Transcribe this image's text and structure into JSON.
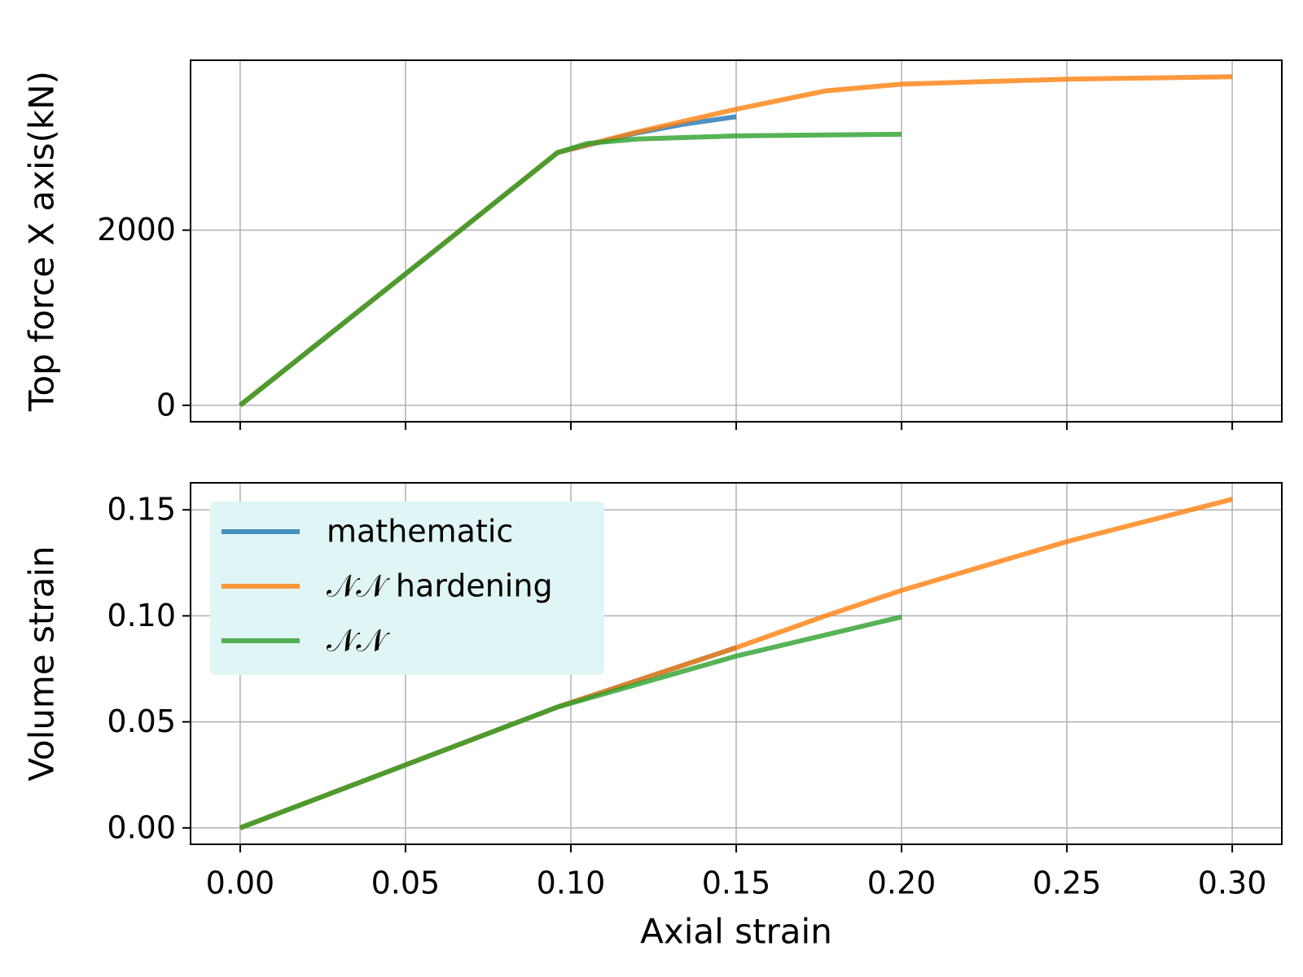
{
  "chart_data": [
    {
      "type": "line",
      "ylabel": "Top force X axis(kN)",
      "xlim": [
        -0.015,
        0.315
      ],
      "xticks": [
        0,
        0.05,
        0.1,
        0.15,
        0.2,
        0.25,
        0.3
      ],
      "xtick_labels": false,
      "ylim": [
        -188,
        3940
      ],
      "yticks": [
        0,
        2000
      ],
      "grid": true,
      "alpha": 0.8,
      "series": [
        {
          "color": "#1f77b4",
          "x": [
            0,
            0.03,
            0.06,
            0.096,
            0.12,
            0.135,
            0.15
          ],
          "values": [
            0,
            900,
            1800,
            2886,
            3110,
            3215,
            3295
          ]
        },
        {
          "color": "#ff7f0e",
          "x": [
            0,
            0.03,
            0.06,
            0.096,
            0.12,
            0.15,
            0.177,
            0.2,
            0.25,
            0.3
          ],
          "values": [
            0,
            900,
            1800,
            2886,
            3120,
            3381,
            3590,
            3667,
            3724,
            3752
          ]
        },
        {
          "color": "#2ca02c",
          "x": [
            0,
            0.03,
            0.06,
            0.096,
            0.105,
            0.12,
            0.15,
            0.2
          ],
          "values": [
            0,
            900,
            1800,
            2886,
            2990,
            3040,
            3076,
            3095
          ]
        }
      ]
    },
    {
      "type": "line",
      "ylabel": "Volume strain",
      "xlabel": "Axial strain",
      "xlim": [
        -0.015,
        0.315
      ],
      "xticks": [
        {
          "value": 0,
          "label": "0.00"
        },
        {
          "value": 0.05,
          "label": "0.05"
        },
        {
          "value": 0.1,
          "label": "0.10"
        },
        {
          "value": 0.15,
          "label": "0.15"
        },
        {
          "value": 0.2,
          "label": "0.20"
        },
        {
          "value": 0.25,
          "label": "0.25"
        },
        {
          "value": 0.3,
          "label": "0.30"
        }
      ],
      "ylim": [
        -0.00775,
        0.16275
      ],
      "yticks": [
        {
          "value": 0,
          "label": "0.00"
        },
        {
          "value": 0.05,
          "label": "0.05"
        },
        {
          "value": 0.1,
          "label": "0.10"
        },
        {
          "value": 0.15,
          "label": "0.15"
        }
      ],
      "grid": true,
      "alpha": 0.8,
      "legend": "upper left",
      "legend_color": "#e0f5f5",
      "series": [
        {
          "name": "mathematic",
          "color": "#1f77b4",
          "x": [
            0,
            0.096,
            0.15
          ],
          "values": [
            0,
            0.057,
            0.085
          ]
        },
        {
          "name": "𝒩𝒩 hardening",
          "color": "#ff7f0e",
          "x": [
            0,
            0.096,
            0.15,
            0.177,
            0.2,
            0.25,
            0.3
          ],
          "values": [
            0,
            0.057,
            0.085,
            0.1,
            0.112,
            0.135,
            0.155
          ]
        },
        {
          "name": "𝒩𝒩",
          "color": "#2ca02c",
          "x": [
            0,
            0.096,
            0.15,
            0.2
          ],
          "values": [
            0,
            0.057,
            0.081,
            0.0995
          ]
        }
      ]
    }
  ]
}
